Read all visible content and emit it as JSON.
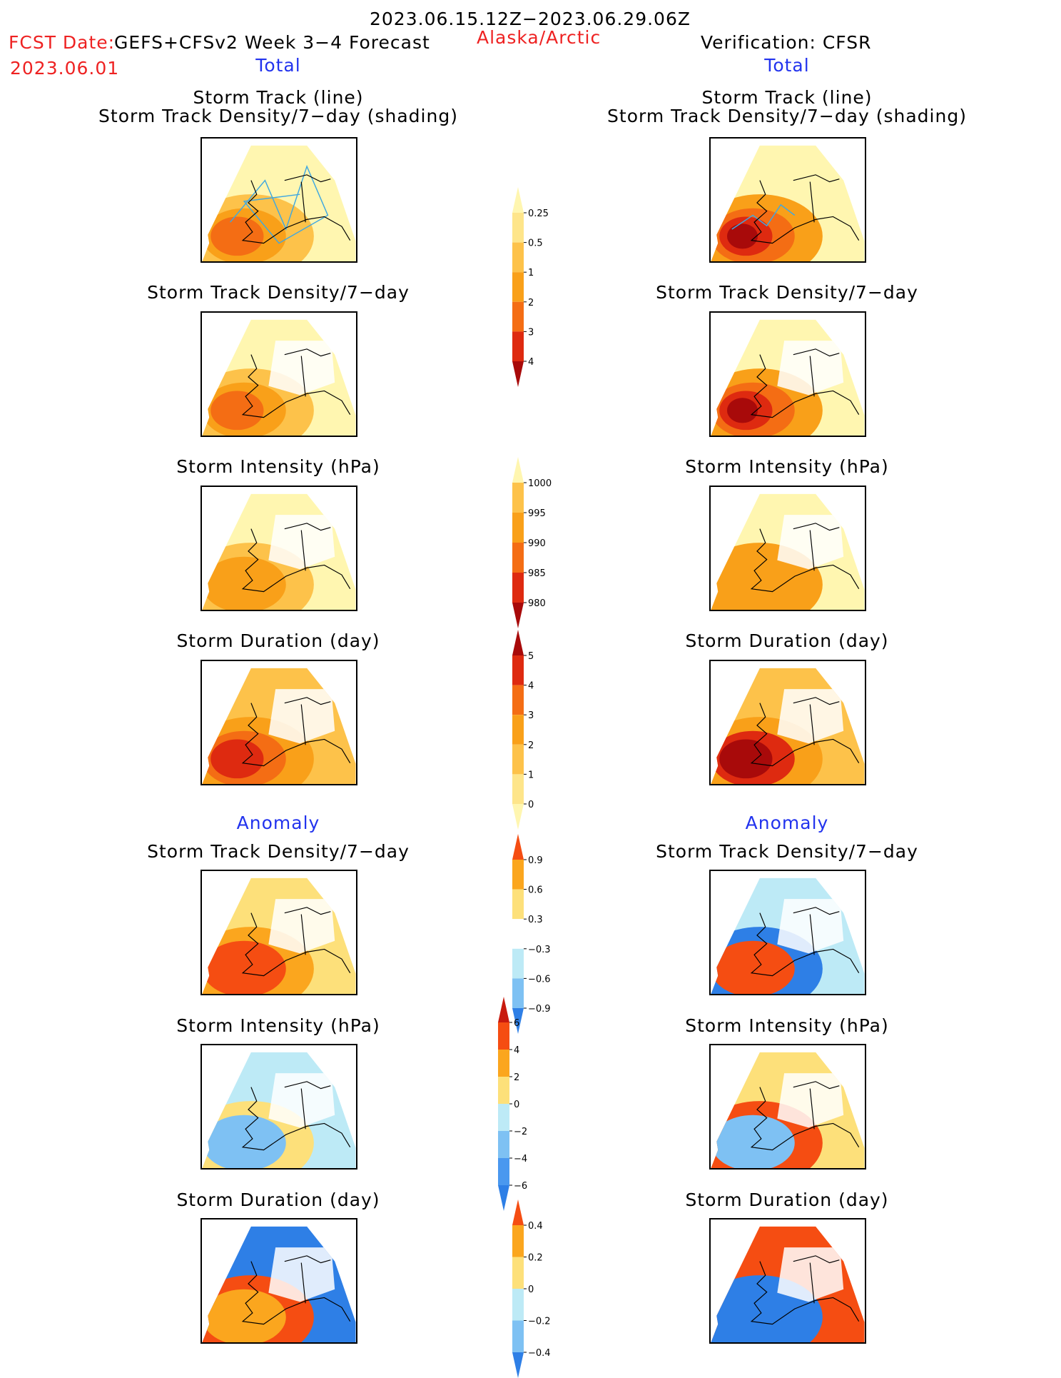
{
  "header": {
    "date_range": "2023.06.15.12Z−2023.06.29.06Z",
    "fcst_label": "FCST Date:",
    "fcst_model": "GEFS+CFSv2 Week 3−4 Forecast",
    "fcst_date": "2023.06.01",
    "region": "Alaska/Arctic",
    "verification": "Verification: CFSR"
  },
  "columns": {
    "left": {
      "total_label": "Total",
      "anomaly_label": "Anomaly"
    },
    "right": {
      "total_label": "Total",
      "anomaly_label": "Anomaly"
    }
  },
  "panel_titles": {
    "track_line": "Storm Track (line)",
    "track_shading": "Storm Track Density/7−day (shading)",
    "density": "Storm Track Density/7−day",
    "intensity": "Storm Intensity (hPa)",
    "duration": "Storm Duration (day)"
  },
  "colors": {
    "c_025": "#fff6b0",
    "c_05": "#fee58a",
    "c_1": "#fdc24a",
    "c_2": "#f9a019",
    "c_3": "#f46d14",
    "c_4": "#de2a10",
    "c_5": "#a80a0a",
    "a_pos3": "#fde07a",
    "a_pos6": "#fba61e",
    "a_pos9": "#f54d12",
    "a_neg3": "#bdeaf6",
    "a_neg6": "#7ec1f3",
    "a_neg9": "#2e7fe6",
    "track_line": "#40a8e0"
  },
  "chart_data": [
    {
      "type": "heatmap",
      "title": "Storm Track Density/7-day shading",
      "colorbar": {
        "ticks": [
          "0.25",
          "0.5",
          "1",
          "2",
          "3",
          "4"
        ],
        "colors": [
          "#fff6b0",
          "#fee58a",
          "#fdc24a",
          "#f9a019",
          "#f46d14",
          "#de2a10",
          "#a80a0a"
        ]
      },
      "panels": [
        "Forecast Total: Storm Track (line) + Density (shading)",
        "CFSR Total: Storm Track (line) + Density (shading)",
        "Forecast Total: Storm Track Density/7-day",
        "CFSR Total: Storm Track Density/7-day"
      ]
    },
    {
      "type": "heatmap",
      "title": "Storm Intensity (hPa)",
      "colorbar": {
        "ticks": [
          "1000",
          "995",
          "990",
          "985",
          "980"
        ],
        "colors": [
          "#fff6b0",
          "#fdc24a",
          "#f9a019",
          "#f46d14",
          "#de2a10",
          "#a80a0a"
        ]
      }
    },
    {
      "type": "heatmap",
      "title": "Storm Duration (day)",
      "colorbar": {
        "ticks": [
          "5",
          "4",
          "3",
          "2",
          "1",
          "0"
        ],
        "colors": [
          "#a80a0a",
          "#de2a10",
          "#f46d14",
          "#f9a019",
          "#fdc24a",
          "#fee58a",
          "#fff6b0"
        ]
      }
    },
    {
      "type": "heatmap",
      "title": "Anomaly Storm Track Density/7-day",
      "colorbar": {
        "ticks": [
          "0.9",
          "0.6",
          "0.3",
          "−0.3",
          "−0.6",
          "−0.9"
        ],
        "colors": [
          "#f54d12",
          "#fba61e",
          "#fde07a",
          "#ffffff",
          "#bdeaf6",
          "#7ec1f3",
          "#2e7fe6"
        ]
      }
    },
    {
      "type": "heatmap",
      "title": "Anomaly Storm Intensity (hPa)",
      "colorbar": {
        "ticks": [
          "6",
          "4",
          "2",
          "0",
          "−2",
          "−4",
          "−6"
        ],
        "colors": [
          "#c81a0e",
          "#f54d12",
          "#fba61e",
          "#fde07a",
          "#bdeaf6",
          "#7ec1f3",
          "#4a98ef",
          "#2e7fe6"
        ]
      }
    },
    {
      "type": "heatmap",
      "title": "Anomaly Storm Duration (day)",
      "colorbar": {
        "ticks": [
          "0.4",
          "0.2",
          "0",
          "−0.2",
          "−0.4"
        ],
        "colors": [
          "#f54d12",
          "#fba61e",
          "#fde07a",
          "#bdeaf6",
          "#7ec1f3",
          "#2e7fe6"
        ]
      }
    }
  ]
}
